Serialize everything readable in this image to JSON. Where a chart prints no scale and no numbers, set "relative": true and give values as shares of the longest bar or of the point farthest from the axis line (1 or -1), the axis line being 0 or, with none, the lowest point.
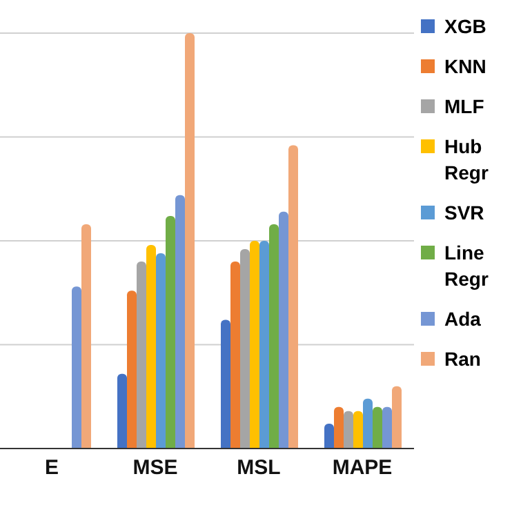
{
  "chart_data": {
    "type": "bar",
    "relative": true,
    "grid": "y",
    "legend": "right",
    "categories": [
      "E",
      "MSE",
      "MSL",
      "MAPE"
    ],
    "series": [
      {
        "name": "XGB",
        "color": "#4472c4",
        "values": [
          null,
          0.18,
          0.31,
          0.06
        ]
      },
      {
        "name": "KNN",
        "color": "#ed7d31",
        "values": [
          null,
          0.38,
          0.45,
          0.1
        ]
      },
      {
        "name": "MLF",
        "color": "#a5a5a5",
        "values": [
          null,
          0.45,
          0.48,
          0.09
        ]
      },
      {
        "name": "Hub Regr",
        "color": "#ffc000",
        "values": [
          null,
          0.49,
          0.5,
          0.09
        ]
      },
      {
        "name": "SVR",
        "color": "#5b9bd5",
        "values": [
          null,
          0.47,
          0.5,
          0.12
        ]
      },
      {
        "name": "Line Regr",
        "color": "#70ad47",
        "values": [
          null,
          0.56,
          0.54,
          0.1
        ]
      },
      {
        "name": "Ada",
        "color": "#7596d4",
        "values": [
          0.39,
          0.61,
          0.57,
          0.1
        ]
      },
      {
        "name": "Ran",
        "color": "#f1a878",
        "values": [
          0.54,
          1,
          0.73,
          0.15
        ]
      }
    ]
  }
}
